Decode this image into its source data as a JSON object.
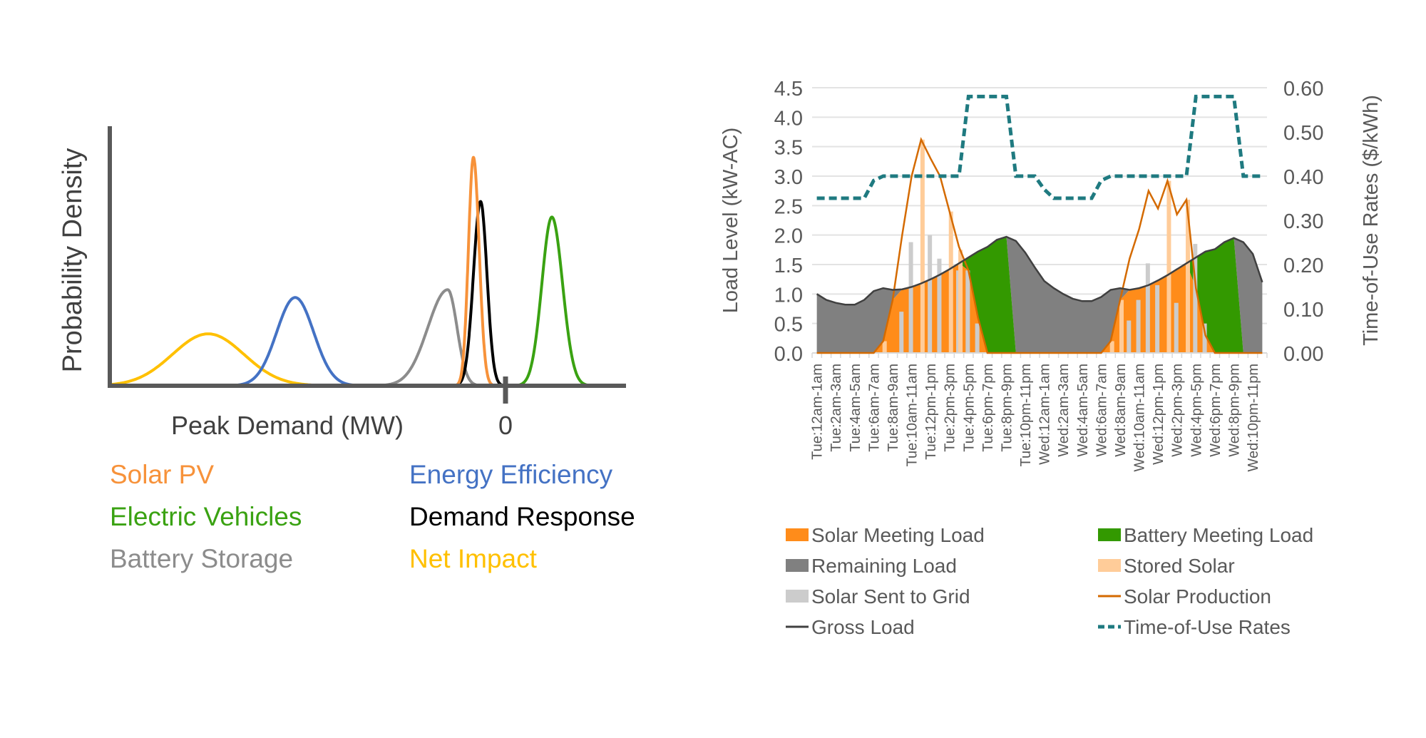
{
  "chart_data": [
    {
      "type": "line",
      "xlabel": "Peak Demand (MW)",
      "ylabel": "Probability Density",
      "x_tick_labels": [
        "0"
      ],
      "x_units_note_hidden": null,
      "xlim": [
        -5.55,
        1.69
      ],
      "ylim": [
        0,
        1
      ],
      "grid": false,
      "legend_placement": "bottom",
      "series": [
        {
          "name": "Solar PV",
          "color": "#f7923a",
          "center": -0.45,
          "sd_left": 0.07,
          "sd_right": 0.08,
          "peak": 0.88
        },
        {
          "name": "Energy Efficiency",
          "color": "#4472c4",
          "center": -2.95,
          "sd_left": 0.26,
          "sd_right": 0.26,
          "peak": 0.34
        },
        {
          "name": "Electric Vehicles",
          "color": "#3aa212",
          "center": 0.65,
          "sd_left": 0.14,
          "sd_right": 0.15,
          "peak": 0.65
        },
        {
          "name": "Demand Response",
          "color": "#000000",
          "center": -0.35,
          "sd_left": 0.1,
          "sd_right": 0.09,
          "peak": 0.71
        },
        {
          "name": "Battery Storage",
          "color": "#8c8c8c",
          "center": -0.81,
          "sd_left": 0.28,
          "sd_right": 0.13,
          "peak": 0.37
        },
        {
          "name": "Net Impact",
          "color": "#ffc000",
          "center": -4.17,
          "sd_left": 0.5,
          "sd_right": 0.5,
          "peak": 0.2
        }
      ]
    },
    {
      "type": "area",
      "ylabel": "Load Level (kW-AC)",
      "y2label": "Time-of-Use Rates ($/kWh)",
      "ylim": [
        0,
        4.5
      ],
      "y2lim": [
        0,
        0.6
      ],
      "y_ticks": [
        "0.0",
        "0.5",
        "1.0",
        "1.5",
        "2.0",
        "2.5",
        "3.0",
        "3.5",
        "4.0",
        "4.5"
      ],
      "y2_ticks": [
        "0.00",
        "0.10",
        "0.20",
        "0.30",
        "0.40",
        "0.50",
        "0.60"
      ],
      "grid": true,
      "legend_placement": "bottom",
      "x_tick_labels": [
        "Tue:12am-1am",
        "Tue:2am-3am",
        "Tue:4am-5am",
        "Tue:6am-7am",
        "Tue:8am-9am",
        "Tue:10am-11am",
        "Tue:12pm-1pm",
        "Tue:2pm-3pm",
        "Tue:4pm-5pm",
        "Tue:6pm-7pm",
        "Tue:8pm-9pm",
        "Tue:10pm-11pm",
        "Wed:12am-1am",
        "Wed:2am-3am",
        "Wed:4am-5am",
        "Wed:6am-7am",
        "Wed:8am-9am",
        "Wed:10am-11am",
        "Wed:12pm-1pm",
        "Wed:2pm-3pm",
        "Wed:4pm-5pm",
        "Wed:6pm-7pm",
        "Wed:8pm-9pm",
        "Wed:10pm-11pm"
      ],
      "hours": 48,
      "series": {
        "solar_meeting_load": {
          "name": "Solar Meeting Load",
          "color": "#ff8c1a",
          "kind": "area",
          "values": [
            0,
            0,
            0,
            0,
            0,
            0,
            0,
            0.2,
            0.9,
            1.08,
            1.12,
            1.18,
            1.25,
            1.33,
            1.42,
            1.52,
            1.4,
            0.6,
            0,
            0,
            0,
            0,
            0,
            0,
            0,
            0,
            0,
            0,
            0,
            0,
            0,
            0.2,
            0.9,
            1.07,
            1.1,
            1.15,
            1.23,
            1.32,
            1.42,
            1.52,
            1.1,
            0.3,
            0,
            0,
            0,
            0,
            0,
            0
          ]
        },
        "battery_meeting_load": {
          "name": "Battery Meeting Load",
          "color": "#339900",
          "kind": "area",
          "values": [
            0,
            0,
            0,
            0,
            0,
            0,
            0,
            0,
            0,
            0,
            0,
            0,
            0,
            0,
            0,
            0,
            0.22,
            1.12,
            1.8,
            1.92,
            1.97,
            0,
            0,
            0,
            0,
            0,
            0,
            0,
            0,
            0,
            0,
            0,
            0,
            0,
            0,
            0,
            0,
            0,
            0,
            0,
            0.52,
            1.42,
            1.76,
            1.88,
            1.95,
            0,
            0,
            0
          ]
        },
        "remaining_load": {
          "name": "Remaining Load",
          "color": "#808080",
          "kind": "area"
        },
        "stored_solar": {
          "name": "Stored Solar",
          "color": "#ffcc99",
          "kind": "bar",
          "values": [
            0,
            0,
            0,
            0,
            0,
            0,
            0,
            0.2,
            0,
            0,
            0,
            3.62,
            0,
            0,
            2.4,
            1.75,
            0,
            0,
            0,
            0,
            0,
            0,
            0,
            0,
            0,
            0,
            0,
            0,
            0,
            0,
            0,
            0.2,
            0.9,
            0,
            0,
            0,
            0,
            2.92,
            0,
            2.6,
            0,
            0,
            0,
            0,
            0,
            0,
            0,
            0
          ]
        },
        "solar_sent_to_grid": {
          "name": "Solar Sent to Grid",
          "color": "#cccccc",
          "kind": "bar",
          "values": [
            0,
            0,
            0,
            0,
            0,
            0,
            0,
            0,
            0,
            0.7,
            1.88,
            0,
            2.0,
            1.6,
            0,
            1.4,
            1.4,
            0.5,
            0,
            0,
            0,
            0,
            0,
            0,
            0,
            0,
            0,
            0,
            0,
            0,
            0,
            0,
            0,
            0.55,
            0.9,
            1.52,
            1.15,
            0,
            0.85,
            0,
            1.85,
            0.5,
            0,
            0,
            0,
            0,
            0,
            0
          ]
        },
        "solar_production": {
          "name": "Solar Production",
          "color": "#d46a00",
          "kind": "line",
          "values": [
            0,
            0,
            0,
            0,
            0,
            0,
            0,
            0.2,
            0.9,
            2.0,
            3.0,
            3.62,
            3.3,
            3.0,
            2.4,
            1.8,
            1.4,
            0.6,
            0,
            0,
            0,
            0,
            0,
            0,
            0,
            0,
            0,
            0,
            0,
            0,
            0,
            0.2,
            0.9,
            1.6,
            2.1,
            2.75,
            2.45,
            2.92,
            2.35,
            2.6,
            1.1,
            0.3,
            0,
            0,
            0,
            0,
            0,
            0
          ]
        },
        "gross_load": {
          "name": "Gross Load",
          "color": "#404040",
          "kind": "line",
          "values": [
            1.0,
            0.9,
            0.85,
            0.82,
            0.82,
            0.9,
            1.05,
            1.1,
            1.07,
            1.08,
            1.12,
            1.18,
            1.25,
            1.33,
            1.42,
            1.52,
            1.62,
            1.72,
            1.8,
            1.92,
            1.97,
            1.9,
            1.7,
            1.45,
            1.22,
            1.1,
            1.0,
            0.92,
            0.88,
            0.88,
            0.95,
            1.07,
            1.1,
            1.07,
            1.1,
            1.15,
            1.23,
            1.32,
            1.42,
            1.52,
            1.62,
            1.72,
            1.76,
            1.88,
            1.95,
            1.88,
            1.68,
            1.2
          ]
        },
        "time_of_use_rates": {
          "name": "Time-of-Use Rates",
          "color": "#1f7a80",
          "kind": "dashed-line",
          "axis": "right",
          "values": [
            0.35,
            0.35,
            0.35,
            0.35,
            0.35,
            0.35,
            0.39,
            0.4,
            0.4,
            0.4,
            0.4,
            0.4,
            0.4,
            0.4,
            0.4,
            0.4,
            0.58,
            0.58,
            0.58,
            0.58,
            0.58,
            0.4,
            0.4,
            0.4,
            0.37,
            0.35,
            0.35,
            0.35,
            0.35,
            0.35,
            0.39,
            0.4,
            0.4,
            0.4,
            0.4,
            0.4,
            0.4,
            0.4,
            0.4,
            0.4,
            0.58,
            0.58,
            0.58,
            0.58,
            0.58,
            0.4,
            0.4,
            0.4
          ]
        }
      },
      "legend": [
        {
          "label": "Solar Meeting Load",
          "color": "#ff8c1a",
          "swatch": "box"
        },
        {
          "label": "Battery Meeting Load",
          "color": "#339900",
          "swatch": "box"
        },
        {
          "label": "Remaining Load",
          "color": "#808080",
          "swatch": "box"
        },
        {
          "label": "Stored Solar",
          "color": "#ffcc99",
          "swatch": "box"
        },
        {
          "label": "Solar Sent to Grid",
          "color": "#cccccc",
          "swatch": "box"
        },
        {
          "label": "Solar Production",
          "color": "#d46a00",
          "swatch": "line"
        },
        {
          "label": "Gross Load",
          "color": "#404040",
          "swatch": "line"
        },
        {
          "label": "Time-of-Use Rates",
          "color": "#1f7a80",
          "swatch": "dash"
        }
      ]
    }
  ]
}
